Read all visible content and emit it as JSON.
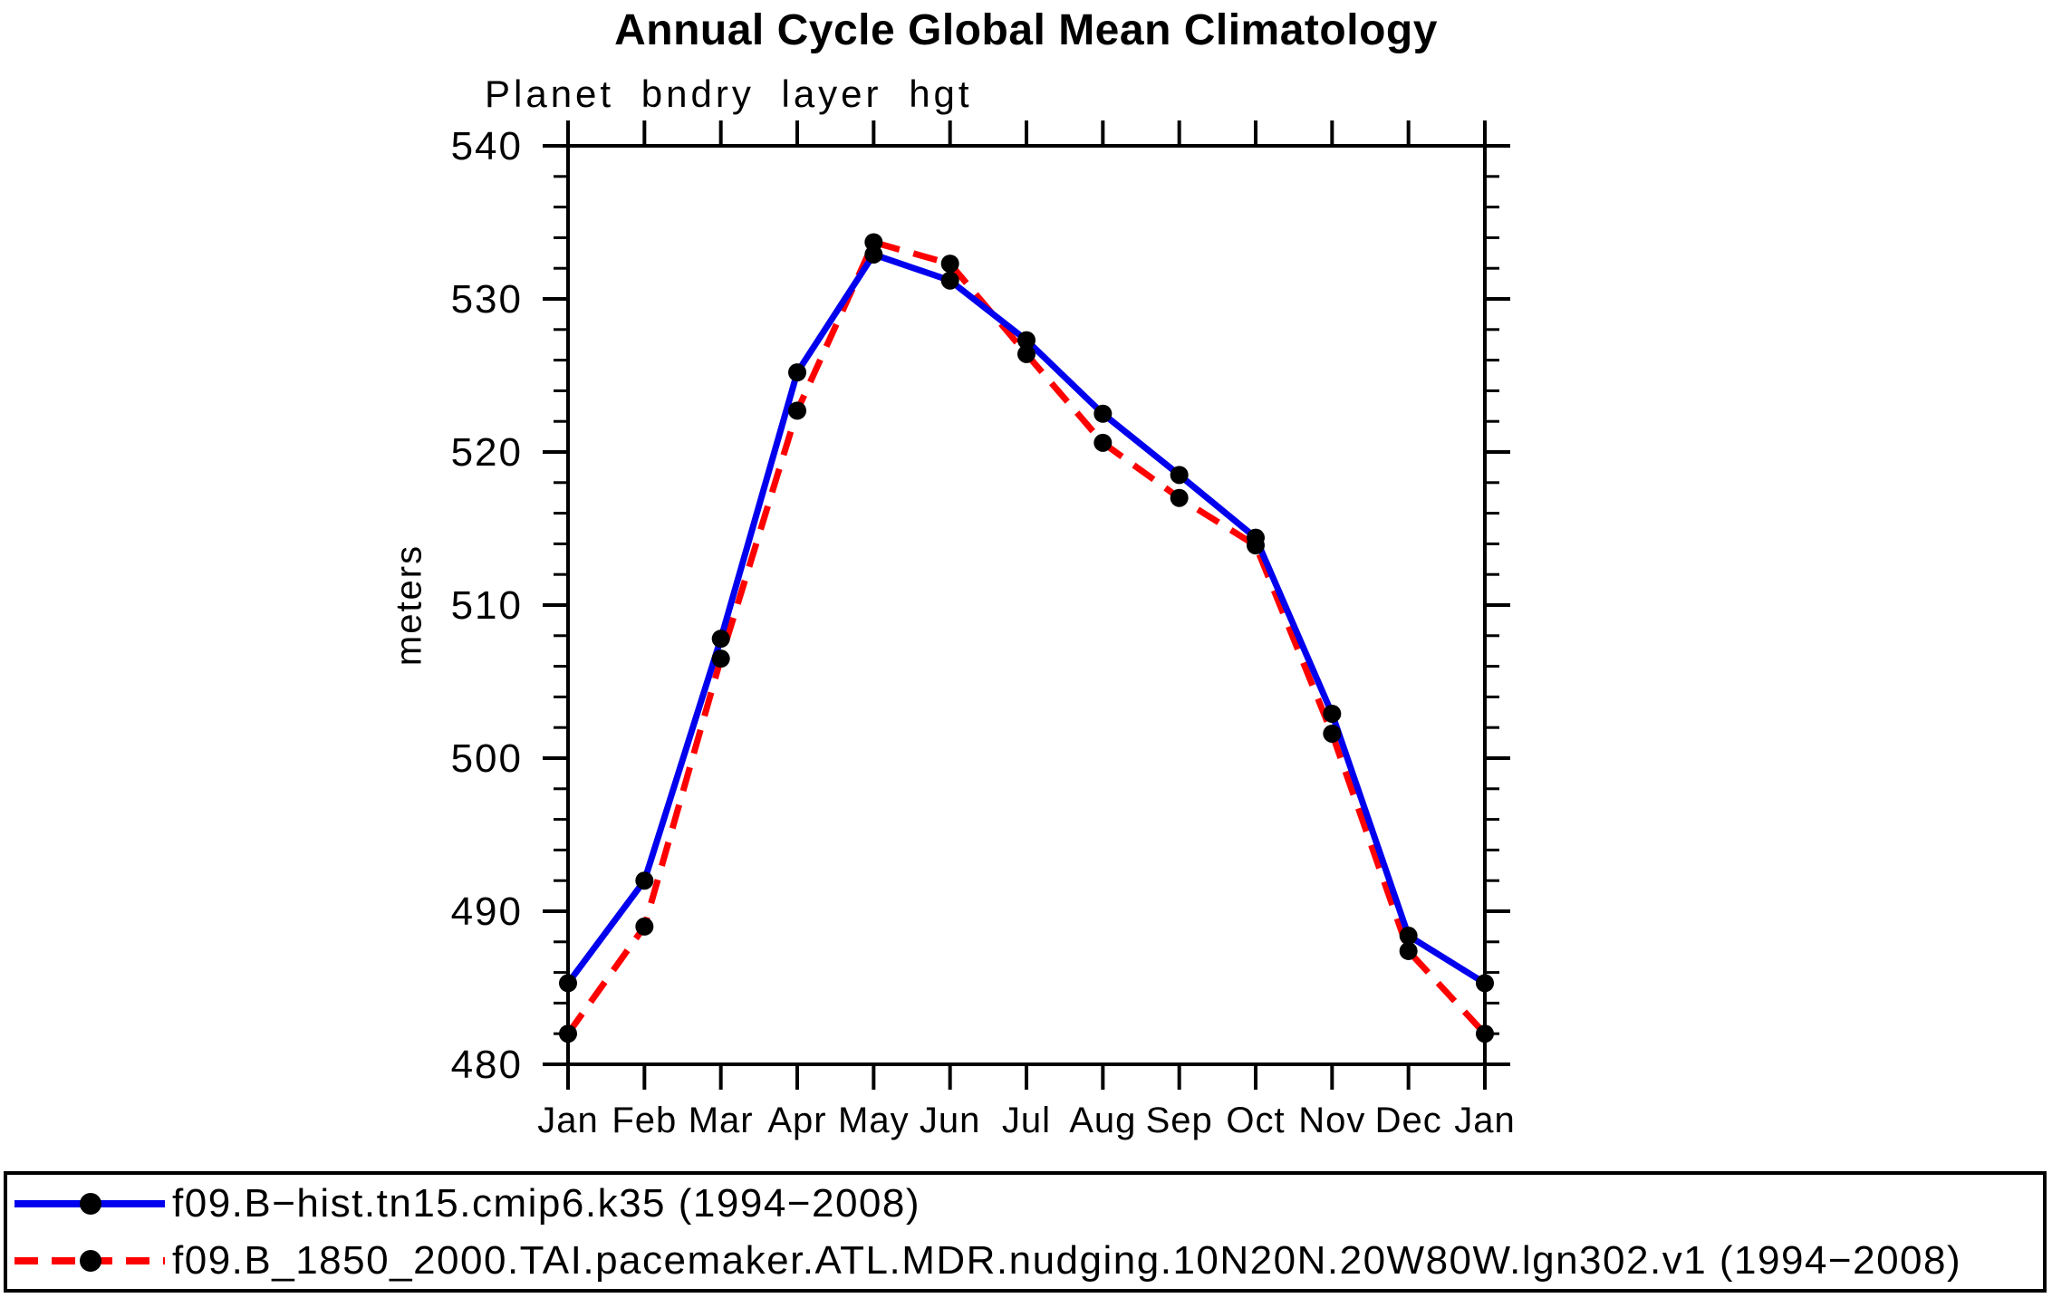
{
  "chart": {
    "title": "Annual Cycle Global Mean Climatology",
    "subtitle": "Planet bndry layer hgt",
    "ylabel": "meters"
  },
  "chart_data": {
    "type": "line",
    "title": "Annual Cycle Global Mean Climatology",
    "subtitle": "Planet bndry layer hgt",
    "xlabel": "",
    "ylabel": "meters",
    "x_categories": [
      "Jan",
      "Feb",
      "Mar",
      "Apr",
      "May",
      "Jun",
      "Jul",
      "Aug",
      "Sep",
      "Oct",
      "Nov",
      "Dec",
      "Jan"
    ],
    "ylim": [
      480,
      540
    ],
    "ytick_major_step": 10,
    "ytick_minor_step": 2,
    "ytick_labels": [
      "480",
      "490",
      "500",
      "510",
      "520",
      "530",
      "540"
    ],
    "grid": false,
    "legend_position": "bottom",
    "axis_color": "#000000",
    "marker_color": "#000000",
    "series": [
      {
        "name": "f09.B−hist.tn15.cmip6.k35 (1994−2008)",
        "color": "#0000ee",
        "style": "solid",
        "marker": "circle",
        "values": [
          485.3,
          492.0,
          507.8,
          525.2,
          532.9,
          531.2,
          527.3,
          522.5,
          518.5,
          514.4,
          502.9,
          488.4,
          485.3
        ]
      },
      {
        "name": "f09.B_1850_2000.TAI.pacemaker.ATL.MDR.nudging.10N20N.20W80W.lgn302.v1 (1994−2008)",
        "color": "#ff0000",
        "style": "dashed",
        "marker": "circle",
        "values": [
          482.0,
          489.0,
          506.5,
          522.7,
          533.7,
          532.3,
          526.4,
          520.6,
          517.0,
          513.9,
          501.6,
          487.4,
          482.0
        ]
      }
    ]
  }
}
